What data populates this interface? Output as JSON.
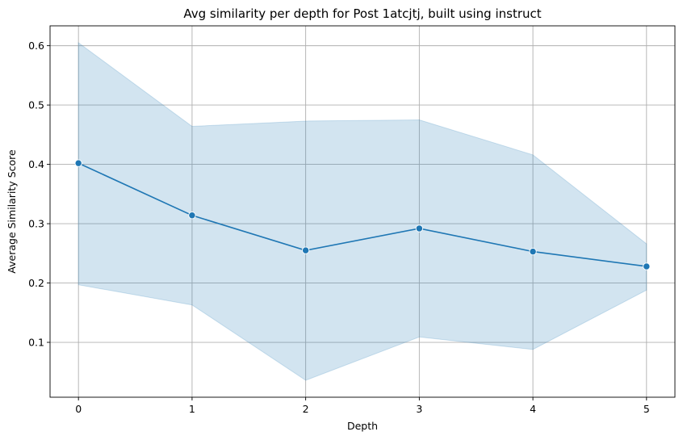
{
  "chart_data": {
    "type": "line",
    "title": "Avg similarity per depth for Post 1atcjtj, built using instruct",
    "xlabel": "Depth",
    "ylabel": "Average Similarity Score",
    "x": [
      0,
      1,
      2,
      3,
      4,
      5
    ],
    "series": [
      {
        "values": [
          0.402,
          0.314,
          0.255,
          0.292,
          0.253,
          0.228
        ],
        "ci_upper": [
          0.605,
          0.464,
          0.473,
          0.475,
          0.416,
          0.266
        ],
        "ci_lower": [
          0.197,
          0.163,
          0.036,
          0.109,
          0.088,
          0.188
        ]
      }
    ],
    "xticks": [
      "0",
      "1",
      "2",
      "3",
      "4",
      "5"
    ],
    "yticks": [
      "0.1",
      "0.2",
      "0.3",
      "0.4",
      "0.5",
      "0.6"
    ],
    "xlim": [
      -0.25,
      5.25
    ],
    "ylim": [
      0.0075,
      0.6335
    ],
    "grid": true,
    "colors": {
      "line": "#1f77b4",
      "band": "#1f77b4"
    }
  }
}
